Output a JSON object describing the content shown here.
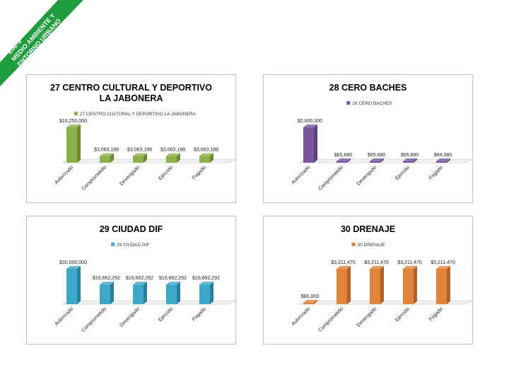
{
  "ribbon": {
    "color": "#1e9c3e",
    "lines": [
      "EJE 3",
      "MEDIO AMBIENTE Y",
      "ENTORNO URBANO"
    ]
  },
  "chart_data": [
    {
      "type": "bar",
      "title": [
        "27 CENTRO CULTURAL Y DEPORTIVO",
        "LA JABONERA"
      ],
      "legend": "27 CENTRO CULTURAL Y DEPORTIVO LA JABONERA",
      "categories": [
        "Autorizado",
        "Comprometido",
        "Devengado",
        "Ejercido",
        "Pagado"
      ],
      "values": [
        16250000,
        3063188,
        3063188,
        3063188,
        3063188
      ],
      "labels": [
        "$16,250,000",
        "$3,063,188",
        "$3,063,188",
        "$3,063,188",
        "$3,063,188"
      ],
      "color": "#8db04a",
      "dark": "#6c8a34"
    },
    {
      "type": "bar",
      "title": [
        "28 CERO BACHES"
      ],
      "legend": "28 CERO BACHES",
      "categories": [
        "Autorizado",
        "Comprometido",
        "Devengado",
        "Ejercido",
        "Pagado"
      ],
      "values": [
        2600000,
        65680,
        65680,
        65680,
        64380
      ],
      "labels": [
        "$2,600,000",
        "$65,680",
        "$65,680",
        "$65,680",
        "$64,380"
      ],
      "color": "#7a56a0",
      "dark": "#5c3f7c"
    },
    {
      "type": "bar",
      "title": [
        "29 CIUDAD DIF"
      ],
      "legend": "29 CIUDAD DIF",
      "categories": [
        "Autorizado",
        "Comprometido",
        "Devengado",
        "Ejercido",
        "Pagado"
      ],
      "values": [
        30000000,
        16662292,
        16662292,
        16662292,
        16662292
      ],
      "labels": [
        "$30,000,000",
        "$16,662,292",
        "$16,662,292",
        "$16,662,292",
        "$16,662,292"
      ],
      "color": "#3ea8c9",
      "dark": "#2a7f9c"
    },
    {
      "type": "bar",
      "title": [
        "30 DRENAJE"
      ],
      "legend": "30 DRENAJE",
      "categories": [
        "Autorizado",
        "Comprometido",
        "Devengado",
        "Ejercido",
        "Pagado"
      ],
      "values": [
        90000,
        3211470,
        3211470,
        3211470,
        3211470
      ],
      "labels": [
        "$90,000",
        "$3,211,470",
        "$3,211,470",
        "$3,211,470",
        "$3,211,470"
      ],
      "color": "#e0843a",
      "dark": "#b0622a"
    }
  ]
}
